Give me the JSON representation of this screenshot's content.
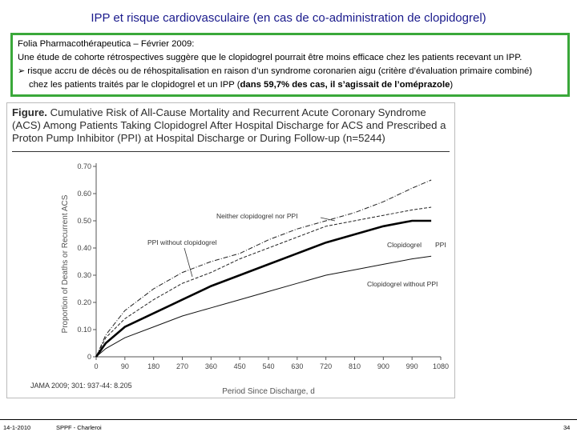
{
  "slide": {
    "title": "IPP et risque cardiovasculaire (en cas de co-administration de clopidogrel)",
    "box": {
      "line1": "Folia Pharmacothérapeutica – Février 2009:",
      "line2": "Une étude de cohorte rétrospectives suggère que le clopidogrel pourrait être moins efficace chez les patients recevant un IPP.",
      "line3": "risque accru de décès ou de réhospitalisation en raison d’un syndrome coronarien aigu (critère d’évaluation primaire combiné)",
      "line4_a": "chez les patients traités par le clopidogrel et un IPP (",
      "line4_b": "dans 59,7% des cas, il s’agissait de l’oméprazole",
      "line4_c": ")"
    },
    "figure": {
      "caption_bold": "Figure.",
      "caption": "Cumulative Risk of All-Cause Mortality and Recurrent Acute Coronary Syndrome (ACS) Among Patients Taking Clopidogrel After Hospital Discharge for ACS and Prescribed a Proton Pump Inhibitor (PPI) at Hospital Discharge or During Follow-up (n=5244)"
    },
    "citation": "JAMA 2009; 301: 937-44: 8.205",
    "footer": {
      "date": "14-1-2010",
      "org": "SPPF - Charleroi",
      "page": "34"
    }
  },
  "chart_data": {
    "type": "line",
    "title": "Cumulative Risk of All-Cause Mortality and Recurrent Acute Coronary Syndrome (ACS)",
    "xlabel": "Period Since Discharge, d",
    "ylabel": "Proportion of Deaths or Recurrent ACS",
    "x_ticks": [
      0,
      90,
      180,
      270,
      360,
      450,
      540,
      630,
      720,
      810,
      900,
      990,
      1080
    ],
    "y_ticks": [
      "0",
      "0.10",
      "0.20",
      "0.30",
      "0.40",
      "0.50",
      "0.60",
      "0.70"
    ],
    "xlim": [
      0,
      1080
    ],
    "ylim": [
      0,
      0.7
    ],
    "series": [
      {
        "name": "Neither clopidogrel nor PPI",
        "style": "dashdot",
        "x": [
          0,
          30,
          90,
          180,
          270,
          360,
          450,
          540,
          630,
          720,
          810,
          900,
          990,
          1050
        ],
        "y": [
          0,
          0.08,
          0.17,
          0.25,
          0.31,
          0.35,
          0.38,
          0.43,
          0.47,
          0.5,
          0.53,
          0.57,
          0.62,
          0.65
        ]
      },
      {
        "name": "PPI without clopidogrel",
        "style": "dashed",
        "x": [
          0,
          30,
          90,
          180,
          270,
          360,
          450,
          540,
          630,
          720,
          810,
          900,
          990,
          1050
        ],
        "y": [
          0,
          0.07,
          0.14,
          0.21,
          0.27,
          0.31,
          0.36,
          0.4,
          0.44,
          0.48,
          0.5,
          0.52,
          0.54,
          0.55
        ]
      },
      {
        "name": "Clopidogrel PPI",
        "style": "thick",
        "x": [
          0,
          30,
          90,
          180,
          270,
          360,
          450,
          540,
          630,
          720,
          810,
          900,
          990,
          1050
        ],
        "y": [
          0,
          0.05,
          0.11,
          0.16,
          0.21,
          0.26,
          0.3,
          0.34,
          0.38,
          0.42,
          0.45,
          0.48,
          0.5,
          0.5
        ]
      },
      {
        "name": "Clopidogrel without PPI",
        "style": "thin",
        "x": [
          0,
          30,
          90,
          180,
          270,
          360,
          450,
          540,
          630,
          720,
          810,
          900,
          990,
          1050
        ],
        "y": [
          0,
          0.03,
          0.07,
          0.11,
          0.15,
          0.18,
          0.21,
          0.24,
          0.27,
          0.3,
          0.32,
          0.34,
          0.36,
          0.37
        ]
      }
    ],
    "annotations": [
      "Neither clopidogrel nor PPI",
      "PPI without clopidogrel",
      "Clopidogrel",
      "PPI",
      "Clopidogrel without PPI"
    ]
  }
}
